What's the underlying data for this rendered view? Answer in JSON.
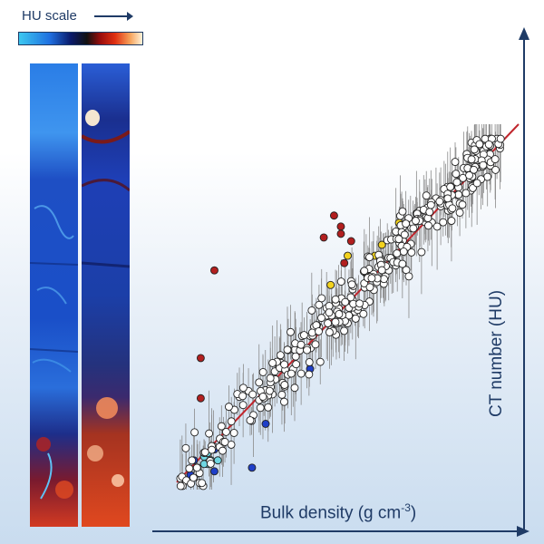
{
  "legend": {
    "title": "HU scale"
  },
  "colors": {
    "axis": "#1f3b66",
    "fit_line": "#c0262d",
    "error_bar": "#8a8a8a",
    "white_point": "#ffffff",
    "red_point": "#b21f1f",
    "yellow_point": "#f2d21e",
    "blue_point": "#1f3fc8",
    "cyan_point": "#6fd6e2"
  },
  "chart_data": {
    "type": "scatter",
    "xlabel_text": "Bulk density (g cm",
    "xlabel_superscript": "-3",
    "xlabel_close": ")",
    "ylabel": "CT number (HU)",
    "xlim": [
      0,
      100
    ],
    "ylim": [
      0,
      100
    ],
    "tick_labels": "none",
    "grid": false,
    "fit_line": {
      "x": [
        0,
        100
      ],
      "y": [
        2,
        100
      ]
    },
    "groups": [
      {
        "color": "red",
        "points": [
          [
            43,
            69
          ],
          [
            46,
            75
          ],
          [
            48,
            72
          ],
          [
            48,
            70
          ],
          [
            49,
            62
          ],
          [
            51,
            68
          ],
          [
            11,
            60
          ],
          [
            7,
            36
          ],
          [
            7,
            25
          ]
        ]
      },
      {
        "color": "yellow",
        "points": [
          [
            50,
            64
          ],
          [
            58,
            64
          ],
          [
            60,
            67
          ],
          [
            65,
            73
          ],
          [
            45,
            56
          ]
        ]
      },
      {
        "color": "blue",
        "points": [
          [
            39,
            33
          ],
          [
            26,
            18
          ],
          [
            22,
            6
          ],
          [
            11,
            11
          ],
          [
            6,
            6
          ],
          [
            5,
            8
          ],
          [
            11,
            5
          ],
          [
            4,
            4
          ]
        ]
      },
      {
        "color": "cyan",
        "points": [
          [
            8,
            9
          ],
          [
            9,
            7
          ],
          [
            9,
            10
          ],
          [
            10,
            8
          ],
          [
            12,
            8
          ],
          [
            8,
            7
          ]
        ]
      },
      {
        "color": "white",
        "n": 340
      }
    ]
  }
}
